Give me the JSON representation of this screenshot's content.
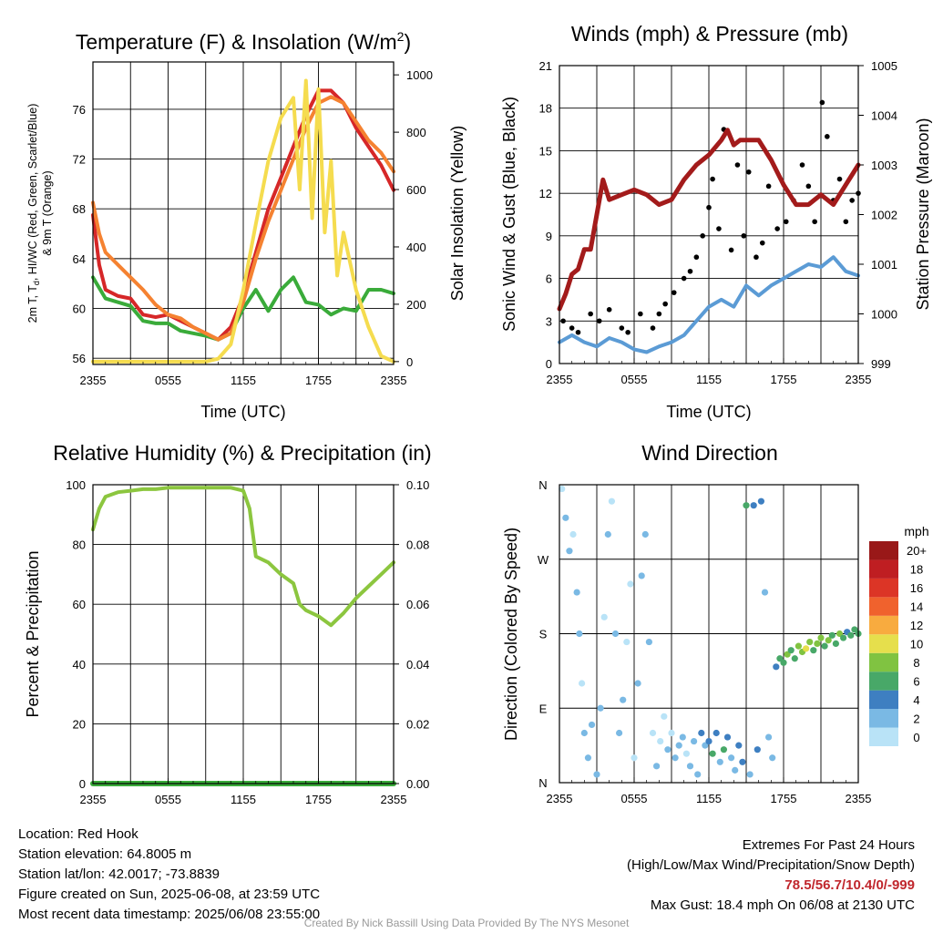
{
  "credit": "Created By Nick Bassill Using Data Provided By The NYS Mesonet",
  "info": {
    "location": "Location: Red Hook",
    "elevation": "Station elevation: 64.8005 m",
    "latlon": "Station lat/lon: 42.0017; -73.8839",
    "created": "Figure created on Sun, 2025-06-08, at 23:59 UTC",
    "recent": "Most recent data timestamp: 2025/06/08 23:55:00",
    "extremes_title": "Extremes For Past 24 Hours",
    "extremes_desc": "(High/Low/Max Wind/Precipitation/Snow Depth)",
    "extremes_values": "78.5/56.7/10.4/0/-999",
    "max_gust": "Max Gust: 18.4 mph On 06/08 at 2130 UTC"
  },
  "chart_data": [
    {
      "type": "line",
      "title": "Temperature (F) & Insolation (W/m",
      "title_sup": "2",
      "title_end": ")",
      "xlabel": "Time (UTC)",
      "ylabel_line1": "2m T, T",
      "ylabel_sub": "d",
      "ylabel_line1_end": ", HI/WC (Red, Green, Scarlet/Blue)",
      "ylabel_line2": "& 9m T (Orange)",
      "y2label": "Solar Insolation (Yellow)",
      "x_ticks": [
        "2355",
        "0555",
        "1155",
        "1755",
        "2355"
      ],
      "x_hours": [
        0,
        6,
        12,
        18,
        24
      ],
      "y_ticks": [
        56,
        60,
        64,
        68,
        72,
        76
      ],
      "y2_ticks": [
        0,
        200,
        400,
        600,
        800,
        1000
      ],
      "ylim": [
        55.5,
        79.8
      ],
      "y2lim": [
        -10,
        1045
      ],
      "series": [
        {
          "name": "2m T",
          "color": "#d62728",
          "x": [
            0,
            0.5,
            1,
            2,
            3,
            4,
            5,
            6,
            7,
            8,
            9,
            10,
            11,
            12,
            13,
            14,
            15,
            16,
            17,
            18,
            19,
            20,
            21,
            22,
            23,
            24
          ],
          "y": [
            67.5,
            63.5,
            61.5,
            61,
            60.8,
            59.5,
            59.3,
            59.5,
            59,
            58.5,
            58,
            57.5,
            58.5,
            61,
            64.5,
            68,
            70.5,
            73,
            75.5,
            77.5,
            77.5,
            76.5,
            74.5,
            73,
            71.5,
            69.5
          ]
        },
        {
          "name": "Td",
          "color": "#3aab3a",
          "x": [
            0,
            1,
            2,
            3,
            4,
            5,
            6,
            7,
            8,
            9,
            10,
            11,
            12,
            13,
            14,
            15,
            16,
            17,
            18,
            19,
            20,
            21,
            22,
            23,
            24
          ],
          "y": [
            62.5,
            60.8,
            60.5,
            60.2,
            59,
            58.8,
            58.8,
            58.2,
            58,
            57.8,
            57.5,
            58,
            60,
            61.5,
            59.8,
            61.5,
            62.5,
            60.5,
            60.3,
            59.5,
            60,
            59.8,
            61.5,
            61.5,
            61.2
          ]
        },
        {
          "name": "9m T",
          "color": "#f58231",
          "x": [
            0,
            0.5,
            1,
            2,
            3,
            4,
            5,
            6,
            7,
            8,
            9,
            10,
            11,
            12,
            13,
            14,
            15,
            16,
            17,
            18,
            19,
            20,
            21,
            22,
            23,
            24
          ],
          "y": [
            68.5,
            66,
            64.5,
            63.5,
            62.5,
            61.5,
            60.3,
            59.5,
            59.2,
            58.5,
            58,
            57.5,
            58,
            60.5,
            64,
            67,
            69.5,
            72,
            74.5,
            76.5,
            77,
            76.5,
            75,
            73.5,
            72.5,
            71
          ]
        },
        {
          "name": "Solar Insolation",
          "color": "#f5dc4f",
          "axis": "y2",
          "x": [
            0,
            5,
            9,
            10,
            11,
            12,
            13,
            14,
            15,
            16,
            16.5,
            17,
            17.5,
            18,
            18.5,
            19,
            19.5,
            20,
            21,
            22,
            23,
            24
          ],
          "y": [
            0,
            0,
            0,
            10,
            60,
            250,
            480,
            700,
            850,
            920,
            600,
            980,
            500,
            950,
            450,
            700,
            300,
            450,
            250,
            120,
            20,
            0
          ]
        }
      ]
    },
    {
      "type": "line",
      "title": "Winds (mph) & Pressure (mb)",
      "xlabel": "Time (UTC)",
      "ylabel": "Sonic Wind & Gust (Blue, Black)",
      "y2label": "Station Pressure (Maroon)",
      "x_ticks": [
        "2355",
        "0555",
        "1155",
        "1755",
        "2355"
      ],
      "x_hours": [
        0,
        6,
        12,
        18,
        24
      ],
      "y_ticks": [
        0,
        3,
        6,
        9,
        12,
        15,
        18,
        21
      ],
      "y2_ticks": [
        999,
        1000,
        1001,
        1002,
        1003,
        1004,
        1005
      ],
      "ylim": [
        0,
        21
      ],
      "y2lim": [
        999,
        1005
      ],
      "series": [
        {
          "name": "Sonic Wind",
          "color": "#5b9bd5",
          "x": [
            0,
            1,
            2,
            3,
            4,
            5,
            6,
            7,
            8,
            9,
            10,
            11,
            12,
            13,
            14,
            15,
            16,
            17,
            18,
            19,
            20,
            21,
            22,
            23,
            24
          ],
          "y": [
            1.5,
            2,
            1.5,
            1.2,
            1.8,
            1.5,
            1,
            0.8,
            1.2,
            1.5,
            2,
            3,
            4,
            4.5,
            4,
            5.5,
            4.8,
            5.5,
            6,
            6.5,
            7,
            6.8,
            7.5,
            6.5,
            6.2
          ]
        },
        {
          "name": "Gust",
          "color": "#000000",
          "style": "points",
          "x": [
            0.3,
            1,
            1.5,
            2.5,
            3.2,
            4,
            5,
            5.5,
            6.5,
            7.5,
            8,
            8.5,
            9.2,
            10,
            10.5,
            11,
            11.5,
            12,
            12.3,
            12.8,
            13.2,
            13.8,
            14.3,
            14.8,
            15.2,
            15.8,
            16.3,
            16.8,
            17.5,
            18.2,
            18.8,
            19.5,
            20,
            20.5,
            21.1,
            21.5,
            22,
            22.5,
            23,
            23.5,
            24
          ],
          "y": [
            3,
            2.5,
            2.2,
            3.5,
            3,
            3.8,
            2.5,
            2.2,
            3.5,
            2.5,
            3.5,
            4.2,
            5,
            6,
            6.5,
            7.5,
            9,
            11,
            13,
            9.5,
            16.5,
            8,
            14,
            9,
            13.5,
            7.5,
            8.5,
            12.5,
            9.5,
            10,
            11.5,
            14,
            12.5,
            10,
            18.4,
            16,
            11.5,
            13,
            10,
            11.5,
            12
          ]
        },
        {
          "name": "Station Pressure",
          "color": "#a31b1b",
          "axis": "y2",
          "x": [
            0,
            0.5,
            1,
            1.5,
            2,
            2.5,
            3,
            3.5,
            4,
            5,
            6,
            7,
            8,
            9,
            10,
            11,
            12,
            13,
            13.5,
            14,
            14.5,
            15,
            16,
            17,
            18,
            19,
            20,
            21,
            22,
            23,
            24
          ],
          "y": [
            1000.1,
            1000.4,
            1000.8,
            1000.9,
            1001.3,
            1001.3,
            1002.0,
            1002.7,
            1002.3,
            1002.4,
            1002.5,
            1002.4,
            1002.2,
            1002.3,
            1002.7,
            1003.0,
            1003.2,
            1003.5,
            1003.7,
            1003.4,
            1003.5,
            1003.5,
            1003.5,
            1003.1,
            1002.6,
            1002.2,
            1002.2,
            1002.4,
            1002.2,
            1002.6,
            1003.0
          ]
        }
      ]
    },
    {
      "type": "line",
      "title": "Relative Humidity (%) & Precipitation (in)",
      "xlabel": "",
      "ylabel": "Percent & Precipitation",
      "x_ticks": [
        "2355",
        "0555",
        "1155",
        "1755",
        "2355"
      ],
      "x_hours": [
        0,
        6,
        12,
        18,
        24
      ],
      "y_ticks": [
        0,
        20,
        40,
        60,
        80,
        100
      ],
      "y2_ticks": [
        "0.00",
        "0.02",
        "0.04",
        "0.06",
        "0.08",
        "0.10"
      ],
      "ylim": [
        0,
        100
      ],
      "y2lim": [
        0,
        0.1
      ],
      "series": [
        {
          "name": "Relative Humidity",
          "color": "#8cc63f",
          "x": [
            0,
            0.5,
            1,
            2,
            3,
            4,
            5,
            6,
            7,
            8,
            9,
            10,
            11,
            12,
            12.5,
            13,
            14,
            15,
            16,
            16.5,
            17,
            18,
            19,
            19.5,
            20,
            21,
            22,
            23,
            24
          ],
          "y": [
            85,
            92,
            96,
            97.5,
            98,
            98.5,
            98.5,
            99,
            99,
            99,
            99,
            99,
            99,
            98,
            92,
            76,
            74,
            70,
            67,
            60,
            58,
            56,
            53,
            55,
            57,
            62,
            66,
            70,
            74
          ]
        },
        {
          "name": "Precipitation",
          "color": "#3aab3a",
          "axis": "y2",
          "x": [
            0,
            24
          ],
          "y": [
            0,
            0
          ]
        }
      ]
    },
    {
      "type": "scatter",
      "title": "Wind Direction",
      "ylabel": "Direction (Colored By Speed)",
      "x_ticks": [
        "2355",
        "0555",
        "1155",
        "1755",
        "2355"
      ],
      "x_hours": [
        0,
        6,
        12,
        18,
        24
      ],
      "y_ticks": [
        "N",
        "E",
        "S",
        "W",
        "N"
      ],
      "y_degrees": [
        0,
        90,
        180,
        270,
        360
      ],
      "ylim": [
        0,
        360
      ],
      "colorbar_label": "mph",
      "colorbar_ticks": [
        "0",
        "2",
        "4",
        "6",
        "8",
        "10",
        "12",
        "14",
        "16",
        "18",
        "20+"
      ],
      "colorbar_colors": [
        "#b9e3f7",
        "#7ab9e4",
        "#3e7fc1",
        "#48a868",
        "#80c341",
        "#e6df4c",
        "#f8ab3f",
        "#f0622d",
        "#dc3526",
        "#bf1e22",
        "#991818"
      ],
      "points": [
        {
          "t": 0.2,
          "dir": 355,
          "spd": 1
        },
        {
          "t": 0.5,
          "dir": 320,
          "spd": 3
        },
        {
          "t": 0.8,
          "dir": 280,
          "spd": 2
        },
        {
          "t": 1.1,
          "dir": 300,
          "spd": 1
        },
        {
          "t": 1.4,
          "dir": 230,
          "spd": 3
        },
        {
          "t": 1.6,
          "dir": 180,
          "spd": 2
        },
        {
          "t": 1.8,
          "dir": 120,
          "spd": 1
        },
        {
          "t": 2.0,
          "dir": 60,
          "spd": 3
        },
        {
          "t": 2.3,
          "dir": 30,
          "spd": 2
        },
        {
          "t": 2.6,
          "dir": 70,
          "spd": 2
        },
        {
          "t": 3.0,
          "dir": 10,
          "spd": 2
        },
        {
          "t": 3.3,
          "dir": 90,
          "spd": 2
        },
        {
          "t": 3.6,
          "dir": 200,
          "spd": 1
        },
        {
          "t": 3.9,
          "dir": 300,
          "spd": 2
        },
        {
          "t": 4.2,
          "dir": 340,
          "spd": 1
        },
        {
          "t": 4.5,
          "dir": 180,
          "spd": 2
        },
        {
          "t": 4.8,
          "dir": 60,
          "spd": 2
        },
        {
          "t": 5.1,
          "dir": 100,
          "spd": 2
        },
        {
          "t": 5.4,
          "dir": 170,
          "spd": 1
        },
        {
          "t": 5.7,
          "dir": 240,
          "spd": 1
        },
        {
          "t": 6.0,
          "dir": 30,
          "spd": 1
        },
        {
          "t": 6.3,
          "dir": 120,
          "spd": 2
        },
        {
          "t": 6.6,
          "dir": 250,
          "spd": 3
        },
        {
          "t": 6.9,
          "dir": 300,
          "spd": 2
        },
        {
          "t": 7.2,
          "dir": 170,
          "spd": 2
        },
        {
          "t": 7.5,
          "dir": 60,
          "spd": 1
        },
        {
          "t": 7.8,
          "dir": 20,
          "spd": 2
        },
        {
          "t": 8.1,
          "dir": 50,
          "spd": 1
        },
        {
          "t": 8.4,
          "dir": 80,
          "spd": 1
        },
        {
          "t": 8.7,
          "dir": 40,
          "spd": 2
        },
        {
          "t": 9.0,
          "dir": 60,
          "spd": 1
        },
        {
          "t": 9.3,
          "dir": 30,
          "spd": 2
        },
        {
          "t": 9.6,
          "dir": 45,
          "spd": 3
        },
        {
          "t": 9.9,
          "dir": 55,
          "spd": 2
        },
        {
          "t": 10.2,
          "dir": 35,
          "spd": 1
        },
        {
          "t": 10.5,
          "dir": 20,
          "spd": 2
        },
        {
          "t": 10.8,
          "dir": 50,
          "spd": 3
        },
        {
          "t": 11.1,
          "dir": 10,
          "spd": 2
        },
        {
          "t": 11.4,
          "dir": 60,
          "spd": 4
        },
        {
          "t": 11.7,
          "dir": 45,
          "spd": 3
        },
        {
          "t": 12.0,
          "dir": 50,
          "spd": 4
        },
        {
          "t": 12.3,
          "dir": 35,
          "spd": 6
        },
        {
          "t": 12.6,
          "dir": 60,
          "spd": 4
        },
        {
          "t": 12.9,
          "dir": 25,
          "spd": 3
        },
        {
          "t": 13.2,
          "dir": 40,
          "spd": 6
        },
        {
          "t": 13.5,
          "dir": 55,
          "spd": 4
        },
        {
          "t": 13.8,
          "dir": 30,
          "spd": 2
        },
        {
          "t": 14.1,
          "dir": 15,
          "spd": 3
        },
        {
          "t": 14.4,
          "dir": 45,
          "spd": 4
        },
        {
          "t": 14.7,
          "dir": 25,
          "spd": 4
        },
        {
          "t": 15.0,
          "dir": 335,
          "spd": 6
        },
        {
          "t": 15.3,
          "dir": 10,
          "spd": 3
        },
        {
          "t": 15.6,
          "dir": 335,
          "spd": 4
        },
        {
          "t": 15.9,
          "dir": 40,
          "spd": 4
        },
        {
          "t": 16.2,
          "dir": 340,
          "spd": 4
        },
        {
          "t": 16.5,
          "dir": 230,
          "spd": 3
        },
        {
          "t": 16.8,
          "dir": 55,
          "spd": 2
        },
        {
          "t": 17.1,
          "dir": 30,
          "spd": 3
        },
        {
          "t": 17.4,
          "dir": 140,
          "spd": 4
        },
        {
          "t": 17.7,
          "dir": 150,
          "spd": 6
        },
        {
          "t": 18.0,
          "dir": 145,
          "spd": 6
        },
        {
          "t": 18.3,
          "dir": 155,
          "spd": 8
        },
        {
          "t": 18.6,
          "dir": 160,
          "spd": 7
        },
        {
          "t": 18.9,
          "dir": 150,
          "spd": 6
        },
        {
          "t": 19.2,
          "dir": 165,
          "spd": 8
        },
        {
          "t": 19.5,
          "dir": 158,
          "spd": 9
        },
        {
          "t": 19.8,
          "dir": 162,
          "spd": 10
        },
        {
          "t": 20.1,
          "dir": 170,
          "spd": 8
        },
        {
          "t": 20.4,
          "dir": 160,
          "spd": 6
        },
        {
          "t": 20.7,
          "dir": 168,
          "spd": 8
        },
        {
          "t": 21.0,
          "dir": 175,
          "spd": 9
        },
        {
          "t": 21.3,
          "dir": 165,
          "spd": 7
        },
        {
          "t": 21.6,
          "dir": 172,
          "spd": 8
        },
        {
          "t": 21.9,
          "dir": 178,
          "spd": 6
        },
        {
          "t": 22.2,
          "dir": 168,
          "spd": 7
        },
        {
          "t": 22.5,
          "dir": 180,
          "spd": 9
        },
        {
          "t": 22.8,
          "dir": 175,
          "spd": 6
        },
        {
          "t": 23.1,
          "dir": 182,
          "spd": 4
        },
        {
          "t": 23.4,
          "dir": 178,
          "spd": 6
        },
        {
          "t": 23.7,
          "dir": 185,
          "spd": 6
        },
        {
          "t": 24.0,
          "dir": 180,
          "spd": 6
        }
      ]
    }
  ]
}
